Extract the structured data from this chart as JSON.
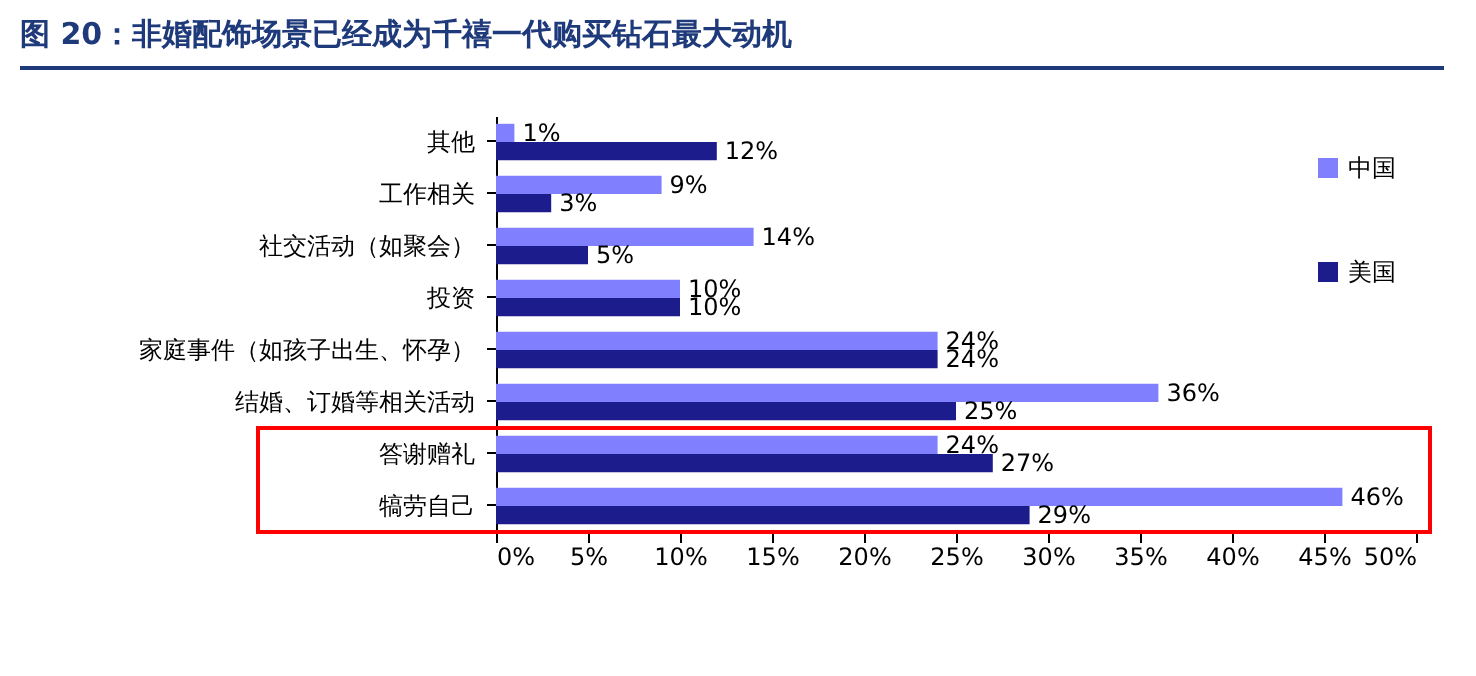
{
  "chart_data": {
    "type": "bar",
    "orientation": "horizontal",
    "title": "图 20：非婚配饰场景已经成为千禧一代购买钻石最大动机",
    "categories": [
      "其他",
      "工作相关",
      "社交活动（如聚会）",
      "投资",
      "家庭事件（如孩子出生、怀孕）",
      "结婚、订婚等相关活动",
      "答谢赠礼",
      "犒劳自己"
    ],
    "series": [
      {
        "name": "中国",
        "color": "#8080ff",
        "values": [
          1,
          9,
          14,
          10,
          24,
          36,
          24,
          46
        ],
        "value_labels": [
          "1%",
          "9%",
          "14%",
          "10%",
          "24%",
          "36%",
          "24%",
          "46%"
        ]
      },
      {
        "name": "美国",
        "color": "#1c1c8c",
        "values": [
          12,
          3,
          5,
          10,
          24,
          25,
          27,
          29
        ],
        "value_labels": [
          "12%",
          "3%",
          "5%",
          "10%",
          "24%",
          "25%",
          "27%",
          "29%"
        ]
      }
    ],
    "xlim": [
      0,
      50
    ],
    "xticks": [
      {
        "value": 0,
        "label": "0%"
      },
      {
        "value": 5,
        "label": "5%"
      },
      {
        "value": 10,
        "label": "10%"
      },
      {
        "value": 15,
        "label": "15%"
      },
      {
        "value": 20,
        "label": "20%"
      },
      {
        "value": 25,
        "label": "25%"
      },
      {
        "value": 30,
        "label": "30%"
      },
      {
        "value": 35,
        "label": "35%"
      },
      {
        "value": 40,
        "label": "40%"
      },
      {
        "value": 45,
        "label": "45%"
      },
      {
        "value": 50,
        "label": "50%"
      }
    ],
    "grid": false,
    "legend": "right"
  }
}
